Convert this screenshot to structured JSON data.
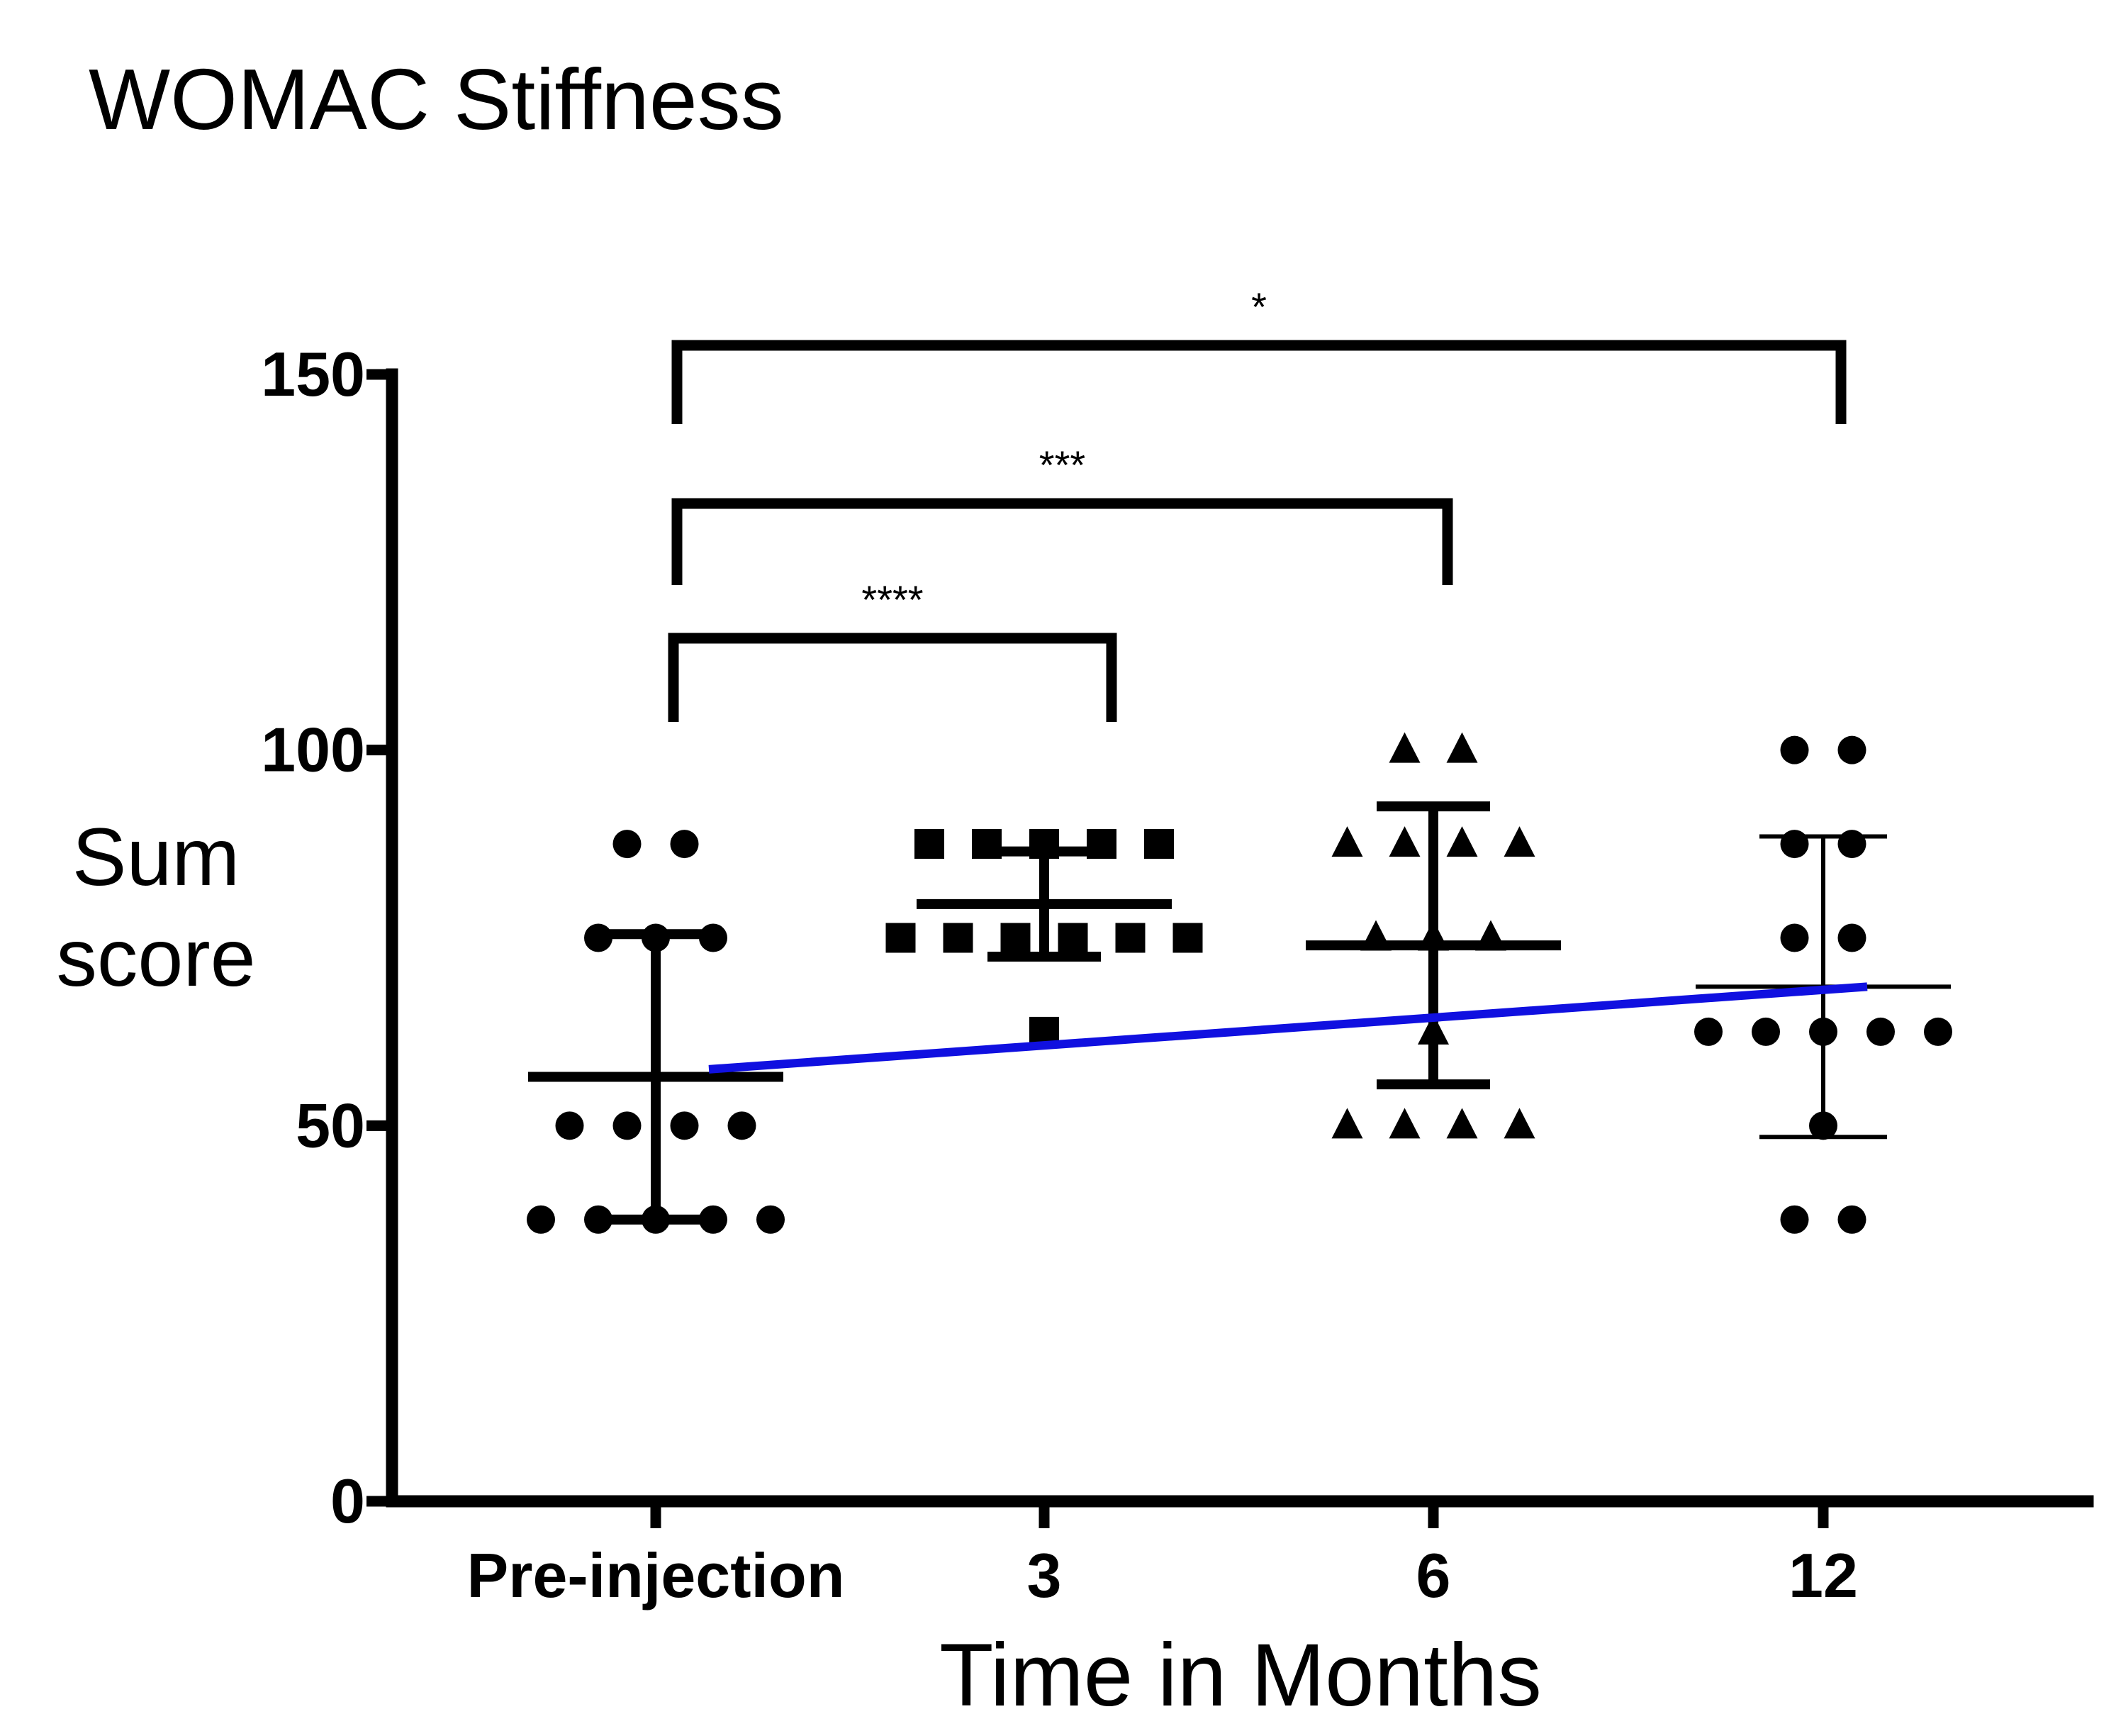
{
  "chart_data": {
    "type": "scatter",
    "title": "WOMAC Stiffness",
    "xlabel": "Time in Months",
    "ylabel": [
      "Sum",
      "score"
    ],
    "ylim": [
      0,
      150
    ],
    "yticks": [
      "0",
      "50",
      "100",
      "150"
    ],
    "categories": [
      "Pre-injection",
      "3",
      "6",
      "12"
    ],
    "groups": [
      {
        "category": "Pre-injection",
        "marker": "circle",
        "mean": 56.5,
        "error_low": 37.5,
        "error_high": 75.5,
        "points": [
          {
            "y": 87.5,
            "n": 2
          },
          {
            "y": 75,
            "n": 3
          },
          {
            "y": 50,
            "n": 4
          },
          {
            "y": 37.5,
            "n": 5
          }
        ]
      },
      {
        "category": "3",
        "marker": "square",
        "mean": 79.5,
        "error_low": 72.5,
        "error_high": 86.5,
        "points": [
          {
            "y": 87.5,
            "n": 5
          },
          {
            "y": 75,
            "n": 6
          },
          {
            "y": 62.5,
            "n": 1
          }
        ]
      },
      {
        "category": "6",
        "marker": "triangle",
        "mean": 74,
        "error_low": 55.5,
        "error_high": 92.5,
        "points": [
          {
            "y": 100,
            "n": 2
          },
          {
            "y": 87.5,
            "n": 4
          },
          {
            "y": 75,
            "n": 3
          },
          {
            "y": 62.5,
            "n": 1
          },
          {
            "y": 50,
            "n": 4
          }
        ]
      },
      {
        "category": "12",
        "marker": "circle",
        "mean": 68.5,
        "error_low": 48.5,
        "error_high": 88.5,
        "points": [
          {
            "y": 100,
            "n": 2
          },
          {
            "y": 87.5,
            "n": 2
          },
          {
            "y": 75,
            "n": 2
          },
          {
            "y": 62.5,
            "n": 5
          },
          {
            "y": 50,
            "n": 1
          },
          {
            "y": 37.5,
            "n": 2
          }
        ]
      }
    ],
    "trend_line": {
      "color": "#1010e0",
      "from": {
        "category": "Pre-injection",
        "y": 57.5
      },
      "to": {
        "category": "12",
        "y": 68.5
      }
    },
    "significance": [
      {
        "from": "Pre-injection",
        "to": "3",
        "label": "****",
        "level": 115
      },
      {
        "from": "Pre-injection",
        "to": "6",
        "label": "***",
        "level": 133
      },
      {
        "from": "Pre-injection",
        "to": "12",
        "label": "*",
        "level": 155
      }
    ]
  }
}
